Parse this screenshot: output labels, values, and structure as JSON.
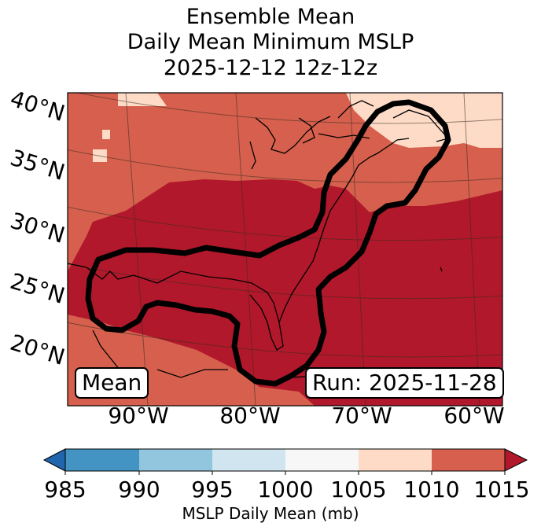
{
  "title": {
    "line1": "Ensemble Mean",
    "line2": "Daily Mean Minimum MSLP",
    "line3": "2025-12-12 12z-12z"
  },
  "map": {
    "lat_labels": [
      "40°N",
      "35°N",
      "30°N",
      "25°N",
      "20°N"
    ],
    "lon_labels": [
      "90°W",
      "80°W",
      "70°W",
      "60°W"
    ],
    "mean_label": "Mean",
    "run_label": "Run: 2025-11-28",
    "colors": {
      "band_1005_1010": "#fddbc7",
      "band_1010_1015": "#d6604d",
      "band_above_1015": "#b2182b",
      "contour": "#000000"
    },
    "features": [
      "coastline",
      "graticule",
      "probability-contour"
    ]
  },
  "colorbar": {
    "label": "MSLP Daily Mean (mb)",
    "ticks": [
      "985",
      "990",
      "995",
      "1000",
      "1005",
      "1010",
      "1015"
    ],
    "colors": [
      "#2166ac",
      "#4393c3",
      "#92c5de",
      "#d1e5f0",
      "#f7f7f7",
      "#fddbc7",
      "#d6604d",
      "#b2182b"
    ],
    "extend": "both"
  }
}
